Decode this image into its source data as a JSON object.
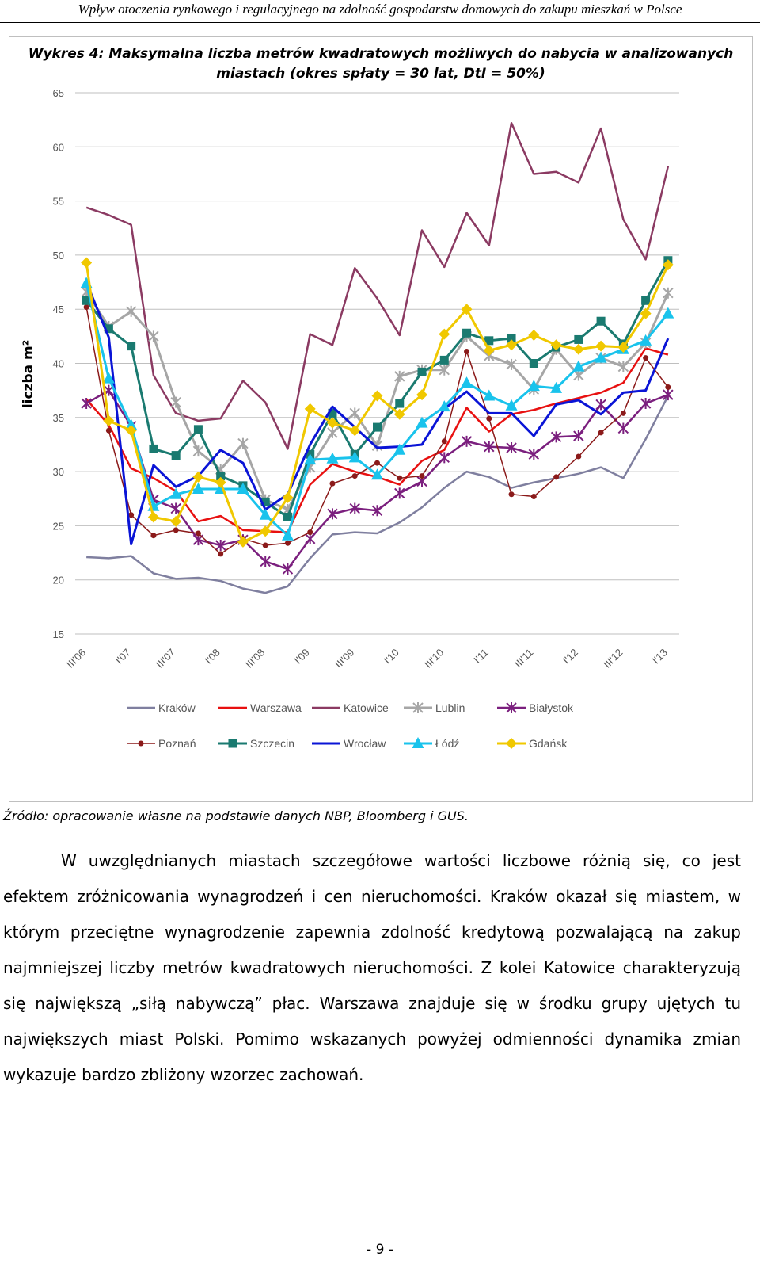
{
  "header": {
    "running_title": "Wpływ otoczenia rynkowego i regulacyjnego na zdolność gospodarstw domowych do zakupu mieszkań w Polsce"
  },
  "chart_data": {
    "type": "line",
    "title": "Wykres 4: Maksymalna liczba metrów kwadratowych możliwych do nabycia w analizowanych miastach (okres spłaty = 30 lat, DtI = 50%)",
    "ylabel": "liczba m²",
    "xlabel": "",
    "ylim": [
      15,
      65
    ],
    "yticks": [
      15,
      20,
      25,
      30,
      35,
      40,
      45,
      50,
      55,
      60,
      65
    ],
    "xtick_labels": [
      "III'06",
      "I'07",
      "III'07",
      "I'08",
      "III'08",
      "I'09",
      "III'09",
      "I'10",
      "III'10",
      "I'11",
      "III'11",
      "I'12",
      "III'12",
      "I'13"
    ],
    "x_count": 27,
    "grid": "horizontal",
    "legend_placement": "bottom",
    "series": [
      {
        "name": "Kraków",
        "color": "#7f7f9f",
        "marker": "none",
        "width": 2.5,
        "values": [
          22.1,
          22.0,
          22.2,
          20.6,
          20.1,
          20.2,
          19.9,
          19.2,
          18.8,
          19.4,
          22.0,
          24.2,
          24.4,
          24.3,
          25.3,
          26.7,
          28.5,
          30.0,
          29.5,
          28.5,
          29.0,
          29.4,
          29.8,
          30.4,
          29.4,
          33.0,
          37.0
        ]
      },
      {
        "name": "Warszawa",
        "color": "#e81010",
        "marker": "none",
        "width": 2.5,
        "values": [
          36.7,
          34.3,
          30.3,
          29.4,
          28.2,
          25.4,
          25.9,
          24.6,
          24.5,
          24.4,
          28.8,
          30.7,
          30.0,
          29.5,
          28.8,
          31.0,
          32.0,
          35.9,
          33.7,
          35.3,
          35.7,
          36.3,
          36.8,
          37.3,
          38.2,
          41.4,
          40.8
        ]
      },
      {
        "name": "Katowice",
        "color": "#8b3a62",
        "marker": "none",
        "width": 2.5,
        "values": [
          54.4,
          53.7,
          52.8,
          38.9,
          35.4,
          34.7,
          34.9,
          38.4,
          36.4,
          32.1,
          42.7,
          41.7,
          48.8,
          46.0,
          42.6,
          52.3,
          48.9,
          53.9,
          50.9,
          62.2,
          57.5,
          57.7,
          56.7,
          61.7,
          53.3,
          49.6,
          58.2
        ]
      },
      {
        "name": "Lublin",
        "color": "#a6a6a6",
        "marker": "star",
        "width": 3,
        "values": [
          46.6,
          43.4,
          44.8,
          42.5,
          36.4,
          31.9,
          30.2,
          32.6,
          27.4,
          26.5,
          30.4,
          33.6,
          35.4,
          32.4,
          38.8,
          39.4,
          39.4,
          42.5,
          40.7,
          39.9,
          37.6,
          41.3,
          38.9,
          40.5,
          39.7,
          41.9,
          46.5
        ]
      },
      {
        "name": "Białystok",
        "color": "#7b1f7e",
        "marker": "star",
        "width": 2.5,
        "values": [
          36.3,
          37.5,
          34.2,
          27.4,
          26.6,
          23.7,
          23.2,
          23.7,
          21.7,
          21.0,
          23.8,
          26.1,
          26.6,
          26.4,
          28.0,
          29.1,
          31.3,
          32.8,
          32.3,
          32.2,
          31.6,
          33.2,
          33.3,
          36.2,
          34.0,
          36.3,
          37.1
        ]
      },
      {
        "name": "Poznań",
        "color": "#8b1a1a",
        "marker": "circle",
        "width": 1.5,
        "values": [
          45.2,
          33.8,
          26.0,
          24.1,
          24.6,
          24.3,
          22.4,
          23.8,
          23.2,
          23.4,
          24.4,
          28.9,
          29.6,
          30.8,
          29.4,
          29.6,
          32.8,
          41.1,
          34.9,
          27.9,
          27.7,
          29.5,
          31.4,
          33.6,
          35.4,
          40.5,
          37.8
        ]
      },
      {
        "name": "Szczecin",
        "color": "#1a7a70",
        "marker": "square",
        "width": 3,
        "values": [
          45.8,
          43.2,
          41.6,
          32.1,
          31.5,
          33.9,
          29.6,
          28.7,
          27.2,
          25.8,
          31.6,
          35.4,
          31.6,
          34.1,
          36.3,
          39.2,
          40.3,
          42.8,
          42.1,
          42.3,
          40.0,
          41.5,
          42.2,
          43.9,
          41.8,
          45.8,
          49.5
        ]
      },
      {
        "name": "Wrocław",
        "color": "#0a14d6",
        "marker": "none",
        "width": 3,
        "values": [
          47.5,
          42.4,
          23.3,
          30.6,
          28.6,
          29.6,
          32.0,
          30.8,
          26.5,
          27.9,
          32.5,
          36.0,
          34.1,
          32.2,
          32.3,
          32.5,
          35.8,
          37.4,
          35.4,
          35.4,
          33.3,
          36.2,
          36.6,
          35.3,
          37.3,
          37.5,
          42.3
        ]
      },
      {
        "name": "Łódź",
        "color": "#19c3ec",
        "marker": "triangle",
        "width": 3,
        "values": [
          47.4,
          38.6,
          34.3,
          26.8,
          27.9,
          28.4,
          28.4,
          28.4,
          26.0,
          24.1,
          31.1,
          31.2,
          31.3,
          29.7,
          32.0,
          34.5,
          36.0,
          38.2,
          37.0,
          36.1,
          37.9,
          37.7,
          39.7,
          40.5,
          41.3,
          42.1,
          44.6
        ]
      },
      {
        "name": "Gdańsk",
        "color": "#f0c800",
        "marker": "diamond",
        "width": 3,
        "values": [
          49.3,
          34.7,
          33.8,
          25.8,
          25.4,
          29.5,
          29.0,
          23.5,
          24.5,
          27.6,
          35.8,
          34.5,
          33.8,
          37.0,
          35.3,
          37.1,
          42.7,
          45.0,
          41.2,
          41.7,
          42.6,
          41.7,
          41.3,
          41.6,
          41.5,
          44.6,
          49.1
        ]
      }
    ]
  },
  "source_note": "Źródło: opracowanie własne na podstawie danych NBP, Bloomberg i GUS.",
  "paragraph": "W uwzględnianych miastach szczegółowe wartości liczbowe różnią się, co jest efektem zróżnicowania wynagrodzeń i cen nieruchomości. Kraków okazał się miastem, w którym przeciętne wynagrodzenie zapewnia zdolność kredytową pozwalającą na zakup najmniejszej liczby metrów kwadratowych nieruchomości. Z kolei Katowice charakteryzują się największą „siłą nabywczą” płac. Warszawa znajduje się w środku grupy ujętych tu największych miast Polski. Pomimo wskazanych powyżej odmienności dynamika zmian wykazuje bardzo zbliżony wzorzec zachowań.",
  "page_number": "- 9 -"
}
